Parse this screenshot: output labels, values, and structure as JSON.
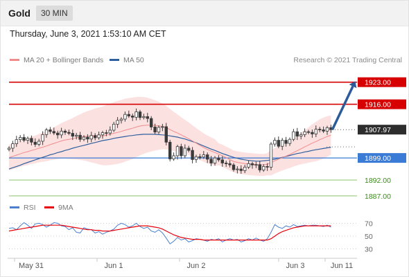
{
  "instrument": "Gold",
  "timeframe": "30 MIN",
  "datetime": "Thursday, June 3, 2021 1:53:10 AM CET",
  "credit": "Research © 2021 Trading Central",
  "colors": {
    "resistance": "#d60000",
    "support_line": "#3a7bd5",
    "pivot_line": "#8bc46a",
    "pivot_text": "#3d8a1c",
    "bollinger_fill": "#fcdcdc",
    "ma20": "#f08c8c",
    "ma50": "#2e5f9e",
    "candle": "#3a3a3a",
    "rsi": "#4a7fd0",
    "rsi_ma": "#e8000a",
    "forecast_arrow": "#2d5b9a"
  },
  "main_legend": [
    {
      "label": "MA 20 + Bollinger Bands",
      "color": "#f08c8c"
    },
    {
      "label": "MA 50",
      "color": "#2e5f9e"
    }
  ],
  "rsi_legend": [
    {
      "label": "RSI",
      "color": "#4a7fd0"
    },
    {
      "label": "9MA",
      "color": "#e8000a"
    }
  ],
  "chart_data": [
    {
      "type": "candlestick",
      "title": "Gold",
      "x_ticks": [
        "May 31",
        "Jun 1",
        "Jun 2",
        "Jun 3",
        "Jun 11"
      ],
      "y_range": [
        1883,
        1926
      ],
      "last_price": 1907.97,
      "levels": [
        {
          "value": 1923.0,
          "label": "1923.00",
          "kind": "resistance"
        },
        {
          "value": 1916.0,
          "label": "1916.00",
          "kind": "resistance"
        },
        {
          "value": 1907.97,
          "label": "1907.97",
          "kind": "last"
        },
        {
          "value": 1899.0,
          "label": "1899.00",
          "kind": "pivot"
        },
        {
          "value": 1892.0,
          "label": "1892.00",
          "kind": "support"
        },
        {
          "value": 1887.0,
          "label": "1887.00",
          "kind": "support"
        }
      ],
      "close": [
        1902.1,
        1903.5,
        1904.8,
        1905.5,
        1904.6,
        1905.2,
        1904.0,
        1903.3,
        1904.3,
        1906.4,
        1907.9,
        1907.4,
        1906.9,
        1906.3,
        1907.5,
        1907.1,
        1906.8,
        1905.9,
        1906.2,
        1904.9,
        1905.6,
        1905.0,
        1906.1,
        1905.4,
        1906.3,
        1907.0,
        1906.9,
        1907.8,
        1909.7,
        1910.9,
        1911.3,
        1912.8,
        1912.3,
        1911.9,
        1913.6,
        1911.8,
        1912.1,
        1911.5,
        1908.8,
        1907.2,
        1908.7,
        1908.9,
        1904.0,
        1898.7,
        1899.7,
        1902.6,
        1899.7,
        1902.1,
        1901.4,
        1898.5,
        1899.4,
        1899.3,
        1900.0,
        1898.6,
        1897.4,
        1899.0,
        1898.4,
        1897.4,
        1897.2,
        1896.8,
        1895.3,
        1895.5,
        1895.0,
        1896.1,
        1897.2,
        1896.8,
        1896.9,
        1895.2,
        1896.3,
        1896.1,
        1903.4,
        1904.6,
        1902.7,
        1904.6,
        1903.6,
        1904.9,
        1907.3,
        1905.9,
        1906.4,
        1907.3,
        1907.1,
        1906.6,
        1908.1,
        1907.9,
        1907.5,
        1908.6,
        1907.97
      ],
      "ma20": [
        1899.1,
        1899.5,
        1899.9,
        1900.3,
        1900.7,
        1901.0,
        1901.4,
        1901.7,
        1902.1,
        1902.4,
        1902.8,
        1903.2,
        1903.6,
        1904.0,
        1904.4,
        1904.7,
        1904.9,
        1905.1,
        1905.4,
        1905.6,
        1905.8,
        1905.9,
        1905.9,
        1906.0,
        1906.0,
        1906.0,
        1906.2,
        1906.5,
        1906.8,
        1907.1,
        1907.4,
        1907.8,
        1908.1,
        1908.4,
        1908.8,
        1909.1,
        1909.3,
        1909.4,
        1909.4,
        1909.3,
        1909.2,
        1909.0,
        1908.6,
        1908.0,
        1907.4,
        1906.9,
        1906.3,
        1905.7,
        1905.1,
        1904.4,
        1903.7,
        1903.0,
        1902.3,
        1901.7,
        1901.2,
        1900.7,
        1900.2,
        1899.7,
        1899.1,
        1898.5,
        1897.9,
        1897.6,
        1897.4,
        1897.2,
        1897.1,
        1897.0,
        1896.9,
        1896.8,
        1896.8,
        1897.0,
        1897.5,
        1898.1,
        1898.6,
        1899.1,
        1899.6,
        1900.1,
        1900.7,
        1901.3,
        1901.9,
        1902.5,
        1903.1,
        1903.7,
        1904.2,
        1904.8,
        1905.3,
        1905.8,
        1906.2
      ],
      "ma50": [
        1895.5,
        1895.9,
        1896.3,
        1896.7,
        1897.2,
        1897.6,
        1898.0,
        1898.4,
        1898.8,
        1899.2,
        1899.6,
        1900.0,
        1900.3,
        1900.7,
        1901.0,
        1901.4,
        1901.7,
        1902.1,
        1902.4,
        1902.7,
        1903.0,
        1903.3,
        1903.6,
        1903.9,
        1904.2,
        1904.5,
        1904.7,
        1904.9,
        1905.2,
        1905.4,
        1905.6,
        1905.8,
        1906.0,
        1906.1,
        1906.3,
        1906.4,
        1906.5,
        1906.5,
        1906.5,
        1906.5,
        1906.4,
        1906.3,
        1906.2,
        1906.0,
        1905.8,
        1905.6,
        1905.3,
        1905.0,
        1904.6,
        1904.2,
        1903.8,
        1903.3,
        1902.8,
        1902.3,
        1901.8,
        1901.4,
        1900.9,
        1900.4,
        1900.0,
        1899.6,
        1899.2,
        1898.9,
        1898.6,
        1898.4,
        1898.2,
        1898.1,
        1898.0,
        1898.0,
        1898.1,
        1898.2,
        1898.4,
        1898.6,
        1898.9,
        1899.2,
        1899.5,
        1899.8,
        1900.1,
        1900.4,
        1900.6,
        1900.9,
        1901.1,
        1901.4,
        1901.6,
        1901.8,
        1902.0,
        1902.2,
        1902.4
      ],
      "forecast": {
        "from": 1907.97,
        "to": 1923.0,
        "direction": "up"
      }
    },
    {
      "type": "line",
      "title": "RSI",
      "y_ticks": [
        70,
        50,
        30
      ],
      "y_range": [
        20,
        80
      ],
      "reference_lines": [
        70,
        50,
        30
      ],
      "series": [
        {
          "name": "RSI",
          "values": [
            62,
            63,
            60,
            66,
            71,
            67,
            62,
            69,
            70,
            68,
            64,
            67,
            71,
            70,
            66,
            65,
            60,
            63,
            56,
            55,
            63,
            61,
            60,
            55,
            57,
            53,
            56,
            58,
            61,
            67,
            70,
            68,
            64,
            66,
            70,
            65,
            62,
            64,
            58,
            56,
            60,
            55,
            47,
            38,
            42,
            48,
            44,
            46,
            41,
            43,
            46,
            45,
            44,
            42,
            45,
            44,
            46,
            41,
            44,
            46,
            44,
            45,
            41,
            43,
            46,
            44,
            47,
            44,
            42,
            46,
            56,
            68,
            64,
            62,
            66,
            64,
            68,
            65,
            66,
            67,
            66,
            67,
            67,
            66,
            65,
            67,
            64
          ]
        },
        {
          "name": "9MA",
          "values": [
            58,
            59,
            60,
            61,
            62,
            63,
            64,
            65,
            66,
            67,
            67,
            67,
            67,
            67,
            67,
            66,
            65,
            64,
            63,
            62,
            61,
            60,
            60,
            59,
            59,
            58,
            58,
            58,
            59,
            60,
            61,
            62,
            63,
            64,
            65,
            66,
            66,
            66,
            65,
            64,
            63,
            61,
            58,
            55,
            52,
            50,
            48,
            47,
            46,
            45,
            45,
            45,
            44,
            44,
            44,
            44,
            44,
            44,
            44,
            44,
            44,
            44,
            44,
            44,
            44,
            44,
            44,
            44,
            44,
            44,
            46,
            50,
            54,
            57,
            59,
            61,
            63,
            64,
            65,
            66,
            66,
            66,
            66,
            66,
            66,
            66,
            66
          ]
        }
      ]
    }
  ]
}
